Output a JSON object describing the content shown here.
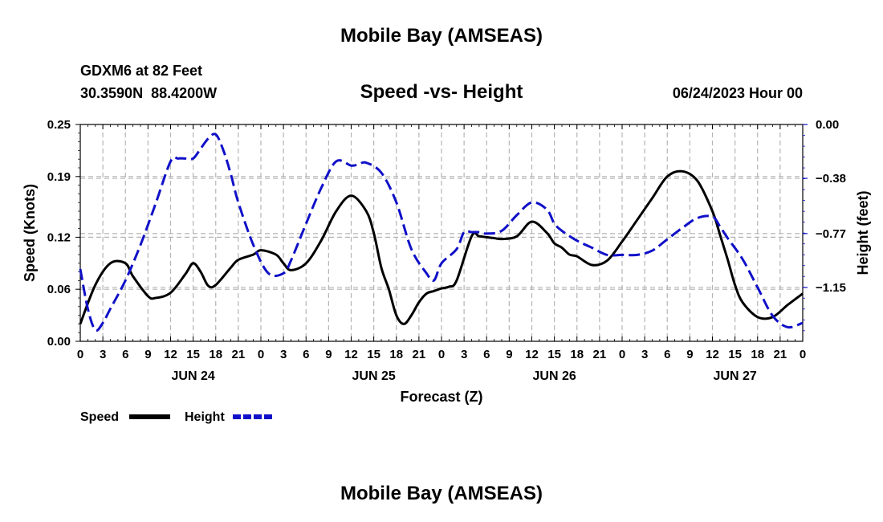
{
  "header": {
    "title": "Mobile Bay (AMSEAS)",
    "station": "GDXM6 at 82 Feet",
    "coordinates": "30.3590N  88.4200W",
    "subtitle": "Speed -vs- Height",
    "datetime": "06/24/2023 Hour 00"
  },
  "footer": {
    "title": "Mobile Bay (AMSEAS)"
  },
  "chart_data": {
    "type": "line",
    "title": "Speed -vs- Height",
    "xlabel": "Forecast (Z)",
    "ylabel_left": "Speed (Knots)",
    "ylabel_right": "Height (feet)",
    "x_ticks": [
      "0",
      "3",
      "6",
      "9",
      "12",
      "15",
      "18",
      "21",
      "0",
      "3",
      "6",
      "9",
      "12",
      "15",
      "18",
      "21",
      "0",
      "3",
      "6",
      "9",
      "12",
      "15",
      "18",
      "21",
      "0",
      "3",
      "6",
      "9",
      "12",
      "15",
      "18",
      "21",
      "0"
    ],
    "day_labels": [
      {
        "label": "JUN 24",
        "hour": 15
      },
      {
        "label": "JUN 25",
        "hour": 39
      },
      {
        "label": "JUN 26",
        "hour": 63
      },
      {
        "label": "JUN 27",
        "hour": 87
      }
    ],
    "xlim": [
      0,
      96
    ],
    "ylim_left": [
      0.0,
      0.25
    ],
    "yticks_left": [
      "0.00",
      "0.06",
      "0.12",
      "0.19",
      "0.25"
    ],
    "ylim_right": [
      -1.53,
      0.0
    ],
    "yticks_right": [
      "0.00",
      "-0.38",
      "-0.77",
      "-1.15"
    ],
    "grid": true,
    "legend": [
      {
        "name": "Speed",
        "color": "#000000",
        "style": "solid"
      },
      {
        "name": "Height",
        "color": "#1010c8",
        "style": "dashed"
      }
    ],
    "series": [
      {
        "name": "Speed",
        "axis": "left",
        "color": "#000000",
        "x": [
          0,
          2,
          4,
          6,
          7,
          9,
          10,
          12,
          14,
          15,
          16,
          17,
          18,
          20,
          21,
          23,
          24,
          26,
          27,
          28,
          30,
          32,
          34,
          36,
          38,
          39,
          40,
          41,
          42,
          43,
          44,
          45,
          46,
          47,
          48,
          49,
          50,
          52,
          53,
          54,
          55,
          56,
          58,
          60,
          62,
          63,
          64,
          65,
          66,
          68,
          70,
          72,
          74,
          76,
          78,
          80,
          82,
          84,
          85,
          86,
          87,
          88,
          90,
          92,
          94,
          96
        ],
        "y": [
          0.02,
          0.065,
          0.09,
          0.09,
          0.075,
          0.052,
          0.05,
          0.056,
          0.078,
          0.09,
          0.08,
          0.064,
          0.065,
          0.085,
          0.094,
          0.1,
          0.105,
          0.1,
          0.09,
          0.082,
          0.09,
          0.116,
          0.15,
          0.168,
          0.15,
          0.125,
          0.085,
          0.06,
          0.03,
          0.02,
          0.03,
          0.045,
          0.055,
          0.058,
          0.061,
          0.063,
          0.07,
          0.121,
          0.121,
          0.12,
          0.119,
          0.118,
          0.121,
          0.138,
          0.125,
          0.113,
          0.108,
          0.1,
          0.098,
          0.088,
          0.093,
          0.115,
          0.14,
          0.165,
          0.19,
          0.196,
          0.185,
          0.15,
          0.123,
          0.095,
          0.065,
          0.045,
          0.028,
          0.028,
          0.042,
          0.055
        ]
      },
      {
        "name": "Height",
        "axis": "right",
        "color": "#1010c8",
        "x": [
          0,
          1,
          2,
          3,
          4,
          6,
          8,
          10,
          12,
          13,
          14,
          15,
          16,
          17,
          18,
          19,
          20,
          21,
          23,
          25,
          27,
          28,
          30,
          32,
          34,
          36,
          37,
          38,
          40,
          42,
          44,
          46,
          47,
          48,
          50,
          51,
          52,
          53,
          54,
          56,
          58,
          60,
          62,
          63,
          64,
          66,
          68,
          70,
          72,
          74,
          76,
          78,
          80,
          82,
          84,
          85,
          86,
          88,
          90,
          92,
          94,
          96
        ],
        "y": [
          -1.02,
          -1.3,
          -1.45,
          -1.4,
          -1.3,
          -1.1,
          -0.85,
          -0.56,
          -0.26,
          -0.24,
          -0.24,
          -0.24,
          -0.17,
          -0.1,
          -0.07,
          -0.18,
          -0.35,
          -0.55,
          -0.85,
          -1.05,
          -1.05,
          -0.96,
          -0.7,
          -0.45,
          -0.26,
          -0.29,
          -0.28,
          -0.27,
          -0.34,
          -0.55,
          -0.88,
          -1.05,
          -1.1,
          -0.98,
          -0.88,
          -0.76,
          -0.76,
          -0.76,
          -0.77,
          -0.75,
          -0.64,
          -0.55,
          -0.6,
          -0.7,
          -0.75,
          -0.82,
          -0.87,
          -0.92,
          -0.92,
          -0.92,
          -0.89,
          -0.81,
          -0.73,
          -0.66,
          -0.65,
          -0.72,
          -0.8,
          -0.95,
          -1.15,
          -1.35,
          -1.43,
          -1.4
        ]
      }
    ]
  }
}
